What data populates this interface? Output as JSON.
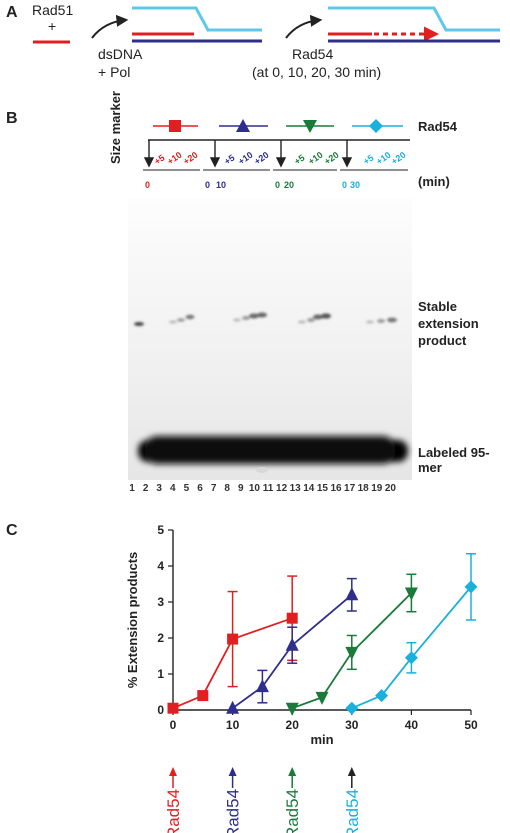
{
  "panel_a": {
    "letter": "A",
    "rad51_label": "Rad51",
    "plus": "+",
    "dsdna_label": "dsDNA",
    "pol_label": "+ Pol",
    "rad54_label": "Rad54",
    "times_label": "(at 0, 10, 20, 30 min)"
  },
  "panel_b": {
    "letter": "B",
    "size_marker": "Size marker",
    "rad54_label": "Rad54",
    "min_label": "(min)",
    "stable_product": [
      "Stable",
      "extension",
      "product"
    ],
    "labeled_95mer": "Labeled 95-mer",
    "groups": [
      {
        "start": "0",
        "adds": [
          "+5",
          "+10",
          "+20"
        ],
        "color": "#e02020",
        "marker": "square"
      },
      {
        "start": "0",
        "start2": "10",
        "adds": [
          "+5",
          "+10",
          "+20"
        ],
        "color": "#2e2e8c",
        "marker": "triangle-up"
      },
      {
        "start": "0",
        "start2": "20",
        "adds": [
          "+5",
          "+10",
          "+20"
        ],
        "color": "#1a7a3a",
        "marker": "triangle-down"
      },
      {
        "start": "0",
        "start2": "30",
        "adds": [
          "+5",
          "+10",
          "+20"
        ],
        "color": "#19b0dc",
        "marker": "diamond"
      }
    ],
    "lanes": [
      "1",
      "2",
      "3",
      "4",
      "5",
      "6",
      "7",
      "8",
      "9",
      "10",
      "11",
      "12",
      "13",
      "14",
      "15",
      "16",
      "17",
      "18",
      "19",
      "20"
    ]
  },
  "panel_c": {
    "letter": "C",
    "arrow_labels": [
      {
        "text": "Rad54",
        "color": "#e02020"
      },
      {
        "text": "Rad54",
        "color": "#2e2e8c"
      },
      {
        "text": "Rad54",
        "color": "#1a7a3a"
      },
      {
        "text": "Rad54",
        "color": "#19b0dc"
      }
    ]
  },
  "chart_data": {
    "type": "line",
    "xlabel": "min",
    "ylabel": "% Extension products",
    "xlim": [
      0,
      50
    ],
    "ylim": [
      0,
      5
    ],
    "x_ticks": [
      0,
      10,
      20,
      30,
      40,
      50
    ],
    "y_ticks": [
      0,
      1,
      2,
      3,
      4,
      5
    ],
    "series": [
      {
        "color": "#e02020",
        "marker": "square",
        "x": [
          0,
          5,
          10,
          20
        ],
        "y": [
          0.05,
          0.4,
          1.97,
          2.55
        ],
        "err": [
          0,
          0,
          1.32,
          1.17
        ]
      },
      {
        "color": "#2e2e8c",
        "marker": "triangle-up",
        "x": [
          10,
          15,
          20,
          30
        ],
        "y": [
          0.05,
          0.65,
          1.8,
          3.2
        ],
        "err": [
          0,
          0.45,
          0.5,
          0.45
        ]
      },
      {
        "color": "#1a7a3a",
        "marker": "triangle-down",
        "x": [
          20,
          25,
          30,
          40
        ],
        "y": [
          0.05,
          0.35,
          1.6,
          3.25
        ],
        "err": [
          0,
          0,
          0.47,
          0.52
        ]
      },
      {
        "color": "#19b0dc",
        "marker": "diamond",
        "x": [
          30,
          35,
          40,
          50
        ],
        "y": [
          0.05,
          0.4,
          1.45,
          3.42
        ],
        "err": [
          0,
          0,
          0.42,
          0.92
        ]
      }
    ]
  }
}
